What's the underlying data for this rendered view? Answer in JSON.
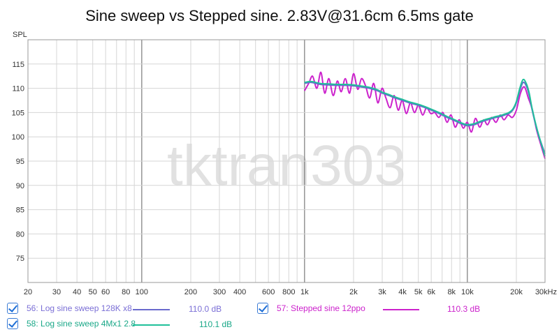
{
  "chart_data": {
    "type": "line",
    "title": "Sine sweep vs Stepped sine. 2.83V@31.6cm 6.5ms gate",
    "ylabel": "SPL",
    "xlabel": "",
    "x_scale": "log",
    "xlim": [
      20,
      30000
    ],
    "ylim": [
      70,
      120
    ],
    "grid": true,
    "watermark": "tktran303",
    "x_ticks": [
      {
        "v": 20,
        "label": "20"
      },
      {
        "v": 30,
        "label": "30"
      },
      {
        "v": 40,
        "label": "40"
      },
      {
        "v": 50,
        "label": "50"
      },
      {
        "v": 60,
        "label": "60"
      },
      {
        "v": 80,
        "label": "80"
      },
      {
        "v": 100,
        "label": "100"
      },
      {
        "v": 200,
        "label": "200"
      },
      {
        "v": 300,
        "label": "300"
      },
      {
        "v": 400,
        "label": "400"
      },
      {
        "v": 600,
        "label": "600"
      },
      {
        "v": 800,
        "label": "800"
      },
      {
        "v": 1000,
        "label": "1k"
      },
      {
        "v": 2000,
        "label": "2k"
      },
      {
        "v": 3000,
        "label": "3k"
      },
      {
        "v": 4000,
        "label": "4k"
      },
      {
        "v": 5000,
        "label": "5k"
      },
      {
        "v": 6000,
        "label": "6k"
      },
      {
        "v": 8000,
        "label": "8k"
      },
      {
        "v": 10000,
        "label": "10k"
      },
      {
        "v": 20000,
        "label": "20k"
      },
      {
        "v": 30000,
        "label": "30kHz"
      }
    ],
    "y_ticks": [
      75,
      80,
      85,
      90,
      95,
      100,
      105,
      110,
      115
    ],
    "series": [
      {
        "name": "56: Log sine sweep 128K x8",
        "color": "#6a6acd",
        "legend_value": "110.0 dB",
        "x": [
          1000,
          1100,
          1250,
          1400,
          1600,
          1800,
          2000,
          2200,
          2500,
          2800,
          3000,
          3300,
          3600,
          4000,
          4400,
          5000,
          5500,
          6000,
          6500,
          7000,
          7500,
          8000,
          8500,
          9000,
          9500,
          10000,
          11000,
          12000,
          13000,
          14000,
          15000,
          16000,
          17000,
          18000,
          19000,
          20000,
          21000,
          22000,
          23000,
          24000,
          25000,
          27000,
          30000
        ],
        "y": [
          111.0,
          111.2,
          110.8,
          110.7,
          110.6,
          110.6,
          110.5,
          110.3,
          110.0,
          109.5,
          109.0,
          108.5,
          108.0,
          107.5,
          107.0,
          106.5,
          106.0,
          105.5,
          105.0,
          104.5,
          104.0,
          103.6,
          103.2,
          102.8,
          102.5,
          102.3,
          102.5,
          103.0,
          103.4,
          103.7,
          104.0,
          104.2,
          104.5,
          104.8,
          105.5,
          107.0,
          109.5,
          111.2,
          110.5,
          108.5,
          105.5,
          101.0,
          96.5
        ]
      },
      {
        "name": "57: Stepped sine 12ppo",
        "color": "#cc22cc",
        "legend_value": "110.3 dB",
        "x": [
          1000,
          1060,
          1120,
          1190,
          1260,
          1330,
          1410,
          1500,
          1590,
          1680,
          1780,
          1890,
          2000,
          2120,
          2240,
          2370,
          2510,
          2660,
          2820,
          2990,
          3160,
          3350,
          3550,
          3760,
          3980,
          4220,
          4470,
          4730,
          5010,
          5310,
          5620,
          5960,
          6310,
          6680,
          7080,
          7500,
          7940,
          8410,
          8910,
          9440,
          10000,
          10600,
          11200,
          11900,
          12600,
          13300,
          14100,
          15000,
          15900,
          16800,
          17800,
          18900,
          20000,
          21200,
          22400,
          23700,
          25100,
          26600,
          28200,
          30000
        ],
        "y": [
          109.5,
          111.0,
          112.5,
          110.0,
          113.3,
          109.0,
          112.0,
          108.5,
          111.5,
          109.3,
          112.0,
          109.0,
          113.0,
          109.8,
          112.0,
          110.5,
          108.0,
          111.0,
          107.0,
          110.0,
          108.0,
          106.0,
          108.5,
          105.5,
          107.5,
          104.8,
          107.0,
          105.0,
          106.5,
          104.5,
          106.0,
          104.8,
          105.0,
          104.0,
          105.0,
          103.0,
          104.5,
          102.0,
          103.5,
          101.8,
          103.0,
          101.0,
          103.8,
          102.0,
          103.5,
          102.5,
          104.0,
          103.0,
          104.5,
          103.5,
          104.5,
          104.0,
          105.5,
          109.0,
          110.3,
          108.0,
          105.5,
          101.5,
          98.5,
          95.5
        ]
      },
      {
        "name": "58: Log sine sweep 4Mx1 2.8",
        "color": "#20c09a",
        "legend_value": "110.1 dB",
        "x": [
          1000,
          1100,
          1250,
          1400,
          1600,
          1800,
          2000,
          2200,
          2500,
          2800,
          3000,
          3300,
          3600,
          4000,
          4400,
          5000,
          5500,
          6000,
          6500,
          7000,
          7500,
          8000,
          8500,
          9000,
          9500,
          10000,
          11000,
          12000,
          13000,
          14000,
          15000,
          16000,
          17000,
          18000,
          19000,
          20000,
          21000,
          22000,
          23000,
          24000,
          25000,
          27000,
          30000
        ],
        "y": [
          111.2,
          111.4,
          111.0,
          110.9,
          110.8,
          110.8,
          110.7,
          110.5,
          110.2,
          109.7,
          109.2,
          108.7,
          108.2,
          107.7,
          107.2,
          106.7,
          106.2,
          105.7,
          105.2,
          104.7,
          104.2,
          103.8,
          103.4,
          103.0,
          102.7,
          102.5,
          102.7,
          103.2,
          103.6,
          103.9,
          104.2,
          104.4,
          104.7,
          105.0,
          105.7,
          107.3,
          110.0,
          111.8,
          111.0,
          109.0,
          105.8,
          101.2,
          96.0
        ]
      }
    ]
  },
  "legend": [
    {
      "label": "56: Log sine sweep 128K x8",
      "value": "110.0 dB",
      "color": "#6a6acd",
      "text_color": "#7b6fd6",
      "checked": true
    },
    {
      "label": "57: Stepped sine 12ppo",
      "value": "110.3 dB",
      "color": "#cc22cc",
      "text_color": "#cc22cc",
      "checked": true
    },
    {
      "label": "58: Log sine sweep 4Mx1 2.8",
      "value": "110.1 dB",
      "color": "#20c09a",
      "text_color": "#1aa888",
      "checked": true
    }
  ]
}
